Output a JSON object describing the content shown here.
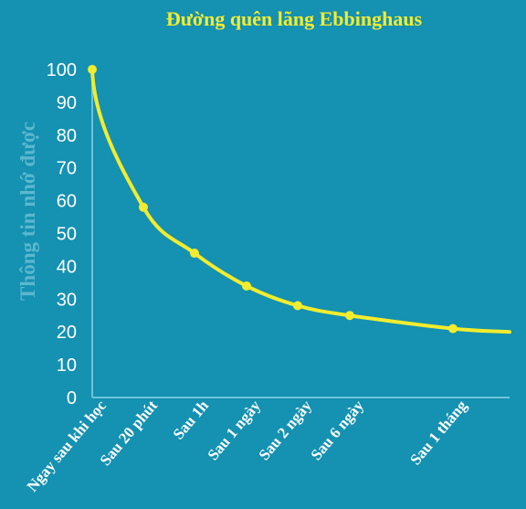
{
  "chart_data": {
    "type": "line",
    "title": "Đường quên lãng Ebbinghaus",
    "ylabel": "Thông tin nhớ được",
    "xlabel": "",
    "ylim": [
      0,
      100
    ],
    "yticks": [
      "0",
      "10",
      "20",
      "30",
      "40",
      "50",
      "60",
      "70",
      "80",
      "90",
      "100"
    ],
    "categories": [
      "Ngay sau khi học",
      "Sau 20 phút",
      "Sau 1h",
      "Sau 1 ngày",
      "Sau 2 ngày",
      "Sau 6 ngày",
      "Sau 1 tháng"
    ],
    "series": [
      {
        "values": [
          100,
          58,
          44,
          34,
          28,
          25,
          21
        ]
      }
    ],
    "tail_value": 20,
    "grid": false,
    "colors": {
      "background": "#1591b1",
      "line": "#f2ec2e",
      "axis": "#6fc3d8",
      "title": "#f2ec2e"
    }
  }
}
